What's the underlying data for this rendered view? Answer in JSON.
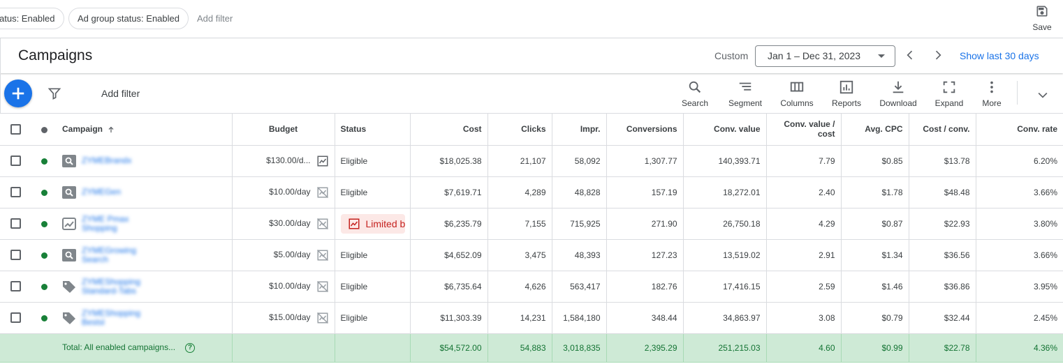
{
  "filters": {
    "chip1": "atus: Enabled",
    "chip2": "Ad group status: Enabled",
    "add_filter": "Add filter",
    "save_label": "Save"
  },
  "header": {
    "title": "Campaigns",
    "custom_label": "Custom",
    "date_range": "Jan 1 – Dec 31, 2023",
    "show_last": "Show last 30 days"
  },
  "toolbar": {
    "add_filter": "Add filter",
    "search": "Search",
    "segment": "Segment",
    "columns": "Columns",
    "reports": "Reports",
    "download": "Download",
    "expand": "Expand",
    "more": "More"
  },
  "table": {
    "headers": {
      "campaign": "Campaign",
      "budget": "Budget",
      "status": "Status",
      "cost": "Cost",
      "clicks": "Clicks",
      "impr": "Impr.",
      "conversions": "Conversions",
      "conv_value": "Conv. value",
      "conv_value_cost_1": "Conv. value /",
      "conv_value_cost_2": "cost",
      "avg_cpc": "Avg. CPC",
      "cost_conv": "Cost / conv.",
      "conv_rate": "Conv. rate"
    },
    "rows": [
      {
        "type": "search",
        "name1": "ZYMEBrandx",
        "name2": "",
        "budget": "$130.00/d...",
        "budget_icon": "chart-icon",
        "status": "Eligible",
        "cost": "$18,025.38",
        "clicks": "21,107",
        "impr": "58,092",
        "conversions": "1,307.77",
        "conv_value": "140,393.71",
        "conv_value_cost": "7.79",
        "avg_cpc": "$0.85",
        "cost_conv": "$13.78",
        "conv_rate": "6.20%"
      },
      {
        "type": "search",
        "name1": "ZYMEGen",
        "name2": "",
        "budget": "$10.00/day",
        "budget_icon": "chart-off-icon",
        "status": "Eligible",
        "cost": "$7,619.71",
        "clicks": "4,289",
        "impr": "48,828",
        "conversions": "157.19",
        "conv_value": "18,272.01",
        "conv_value_cost": "2.40",
        "avg_cpc": "$1.78",
        "cost_conv": "$48.48",
        "conv_rate": "3.66%"
      },
      {
        "type": "performance",
        "name1": "ZYME Pmax",
        "name2": "Shopping",
        "budget": "$30.00/day",
        "budget_icon": "chart-off-icon",
        "status": "Limited by budget",
        "cost": "$6,235.79",
        "clicks": "7,155",
        "impr": "715,925",
        "conversions": "271.90",
        "conv_value": "26,750.18",
        "conv_value_cost": "4.29",
        "avg_cpc": "$0.87",
        "cost_conv": "$22.93",
        "conv_rate": "3.80%"
      },
      {
        "type": "search",
        "name1": "ZYMEGrowing",
        "name2": "Search",
        "budget": "$5.00/day",
        "budget_icon": "chart-off-icon",
        "status": "Eligible",
        "cost": "$4,652.09",
        "clicks": "3,475",
        "impr": "48,393",
        "conversions": "127.23",
        "conv_value": "13,519.02",
        "conv_value_cost": "2.91",
        "avg_cpc": "$1.34",
        "cost_conv": "$36.56",
        "conv_rate": "3.66%"
      },
      {
        "type": "shopping",
        "name1": "ZYMEShopping",
        "name2": "Standard-Tabs",
        "budget": "$10.00/day",
        "budget_icon": "chart-off-icon",
        "status": "Eligible",
        "cost": "$6,735.64",
        "clicks": "4,626",
        "impr": "563,417",
        "conversions": "182.76",
        "conv_value": "17,416.15",
        "conv_value_cost": "2.59",
        "avg_cpc": "$1.46",
        "cost_conv": "$36.86",
        "conv_rate": "3.95%"
      },
      {
        "type": "shopping",
        "name1": "ZYMEShopping",
        "name2": "Bestsl",
        "budget": "$15.00/day",
        "budget_icon": "chart-off-icon",
        "status": "Eligible",
        "cost": "$11,303.39",
        "clicks": "14,231",
        "impr": "1,584,180",
        "conversions": "348.44",
        "conv_value": "34,863.97",
        "conv_value_cost": "3.08",
        "avg_cpc": "$0.79",
        "cost_conv": "$32.44",
        "conv_rate": "2.45%"
      }
    ],
    "total": {
      "label": "Total: All enabled campaigns...",
      "cost": "$54,572.00",
      "clicks": "54,883",
      "impr": "3,018,835",
      "conversions": "2,395.29",
      "conv_value": "251,215.03",
      "conv_value_cost": "4.60",
      "avg_cpc": "$0.99",
      "cost_conv": "$22.78",
      "conv_rate": "4.36%"
    }
  },
  "colors": {
    "accent": "#1a73e8",
    "enabled_green": "#188038",
    "total_bg": "#ceead6",
    "limited_bg": "#fce8e6",
    "limited_text": "#c5221f"
  }
}
